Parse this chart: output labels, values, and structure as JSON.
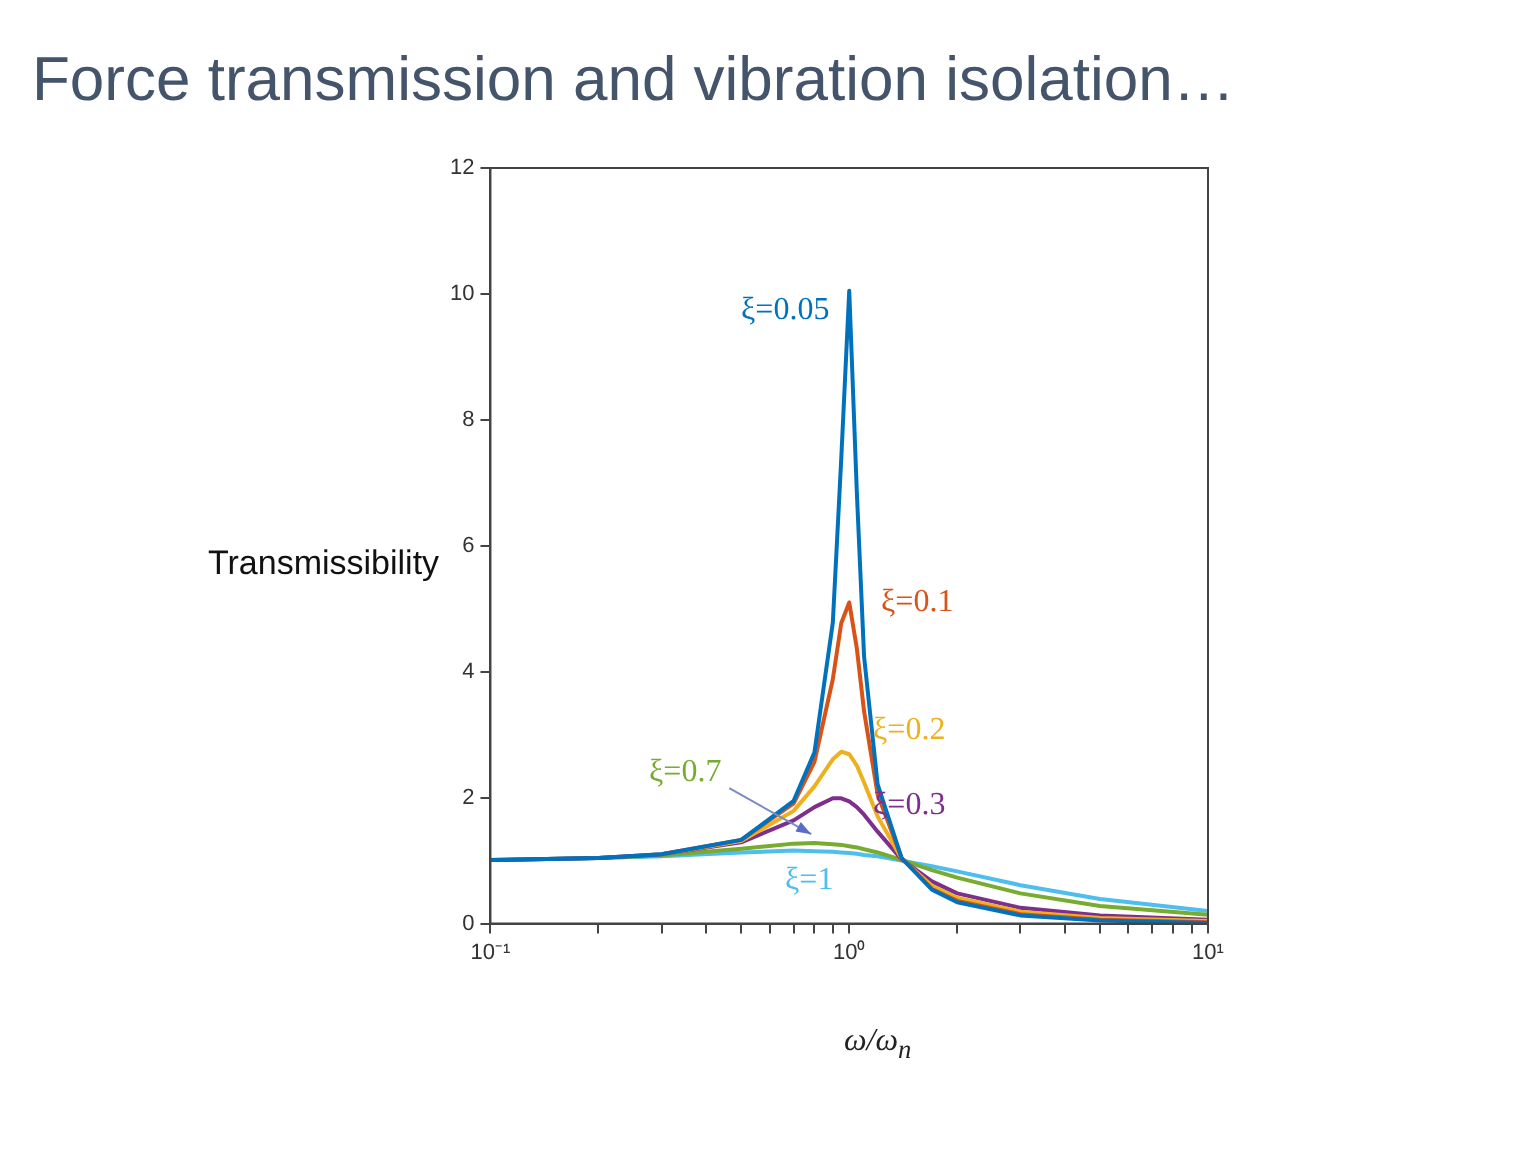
{
  "chart_data": {
    "type": "line",
    "title": "Force transmission and vibration isolation…",
    "xlabel": "ω/ω$_{n}$",
    "ylabel": "Transmissibility",
    "x": [
      0.1,
      0.2,
      0.3,
      0.5,
      0.7,
      0.8,
      0.9,
      0.95,
      1,
      1.05,
      1.1,
      1.2,
      1.4,
      1.7,
      2,
      3,
      5,
      10
    ],
    "series": [
      {
        "name": "ξ=0.05",
        "color": "#0072bd",
        "values": [
          1.01,
          1.04,
          1.1,
          1.33,
          1.95,
          2.72,
          4.78,
          7.38,
          10.05,
          6.85,
          4.24,
          2.21,
          1.04,
          0.54,
          0.34,
          0.13,
          0.05,
          0.01
        ]
      },
      {
        "name": "ξ=0.1",
        "color": "#d95319",
        "values": [
          null,
          null,
          1.1,
          1.33,
          1.91,
          2.57,
          3.88,
          4.77,
          5.1,
          4.37,
          3.37,
          2.05,
          1.04,
          0.55,
          0.36,
          0.15,
          0.06,
          0.02
        ]
      },
      {
        "name": "ξ=0.2",
        "color": "#edb120",
        "values": [
          null,
          null,
          1.1,
          1.31,
          1.79,
          2.18,
          2.61,
          2.73,
          2.69,
          2.51,
          2.24,
          1.7,
          1.03,
          0.6,
          0.41,
          0.19,
          0.09,
          0.04
        ]
      },
      {
        "name": "ξ=0.3",
        "color": "#7e2f8e",
        "values": [
          1.01,
          1.04,
          1.1,
          1.29,
          1.64,
          1.85,
          1.99,
          1.99,
          1.94,
          1.85,
          1.73,
          1.46,
          1.02,
          0.67,
          0.48,
          0.25,
          0.13,
          0.06
        ]
      },
      {
        "name": "ξ=0.7",
        "color": "#77ac30",
        "values": [
          1.01,
          1.04,
          1.08,
          1.19,
          1.27,
          1.28,
          1.26,
          1.25,
          1.23,
          1.21,
          1.18,
          1.13,
          1.01,
          0.85,
          0.73,
          0.48,
          0.28,
          0.14
        ]
      },
      {
        "name": "ξ=1",
        "color": "#4dbeee",
        "values": [
          1.01,
          1.04,
          1.07,
          1.13,
          1.16,
          1.15,
          1.14,
          1.13,
          1.12,
          1.11,
          1.09,
          1.07,
          1.0,
          0.91,
          0.83,
          0.61,
          0.39,
          0.2
        ]
      }
    ],
    "log": "x",
    "xlim": [
      0.1,
      10
    ],
    "xticks": [
      {
        "value": 0.1,
        "label": "10⁻¹"
      },
      {
        "value": 0.2,
        "label": null
      },
      {
        "value": 0.3,
        "label": null
      },
      {
        "value": 0.4,
        "label": null
      },
      {
        "value": 0.5,
        "label": null
      },
      {
        "value": 0.6,
        "label": null
      },
      {
        "value": 0.7,
        "label": null
      },
      {
        "value": 0.8,
        "label": null
      },
      {
        "value": 0.9,
        "label": null
      },
      {
        "value": 1,
        "label": "10⁰"
      },
      {
        "value": 2,
        "label": null
      },
      {
        "value": 3,
        "label": null
      },
      {
        "value": 4,
        "label": null
      },
      {
        "value": 5,
        "label": null
      },
      {
        "value": 6,
        "label": null
      },
      {
        "value": 7,
        "label": null
      },
      {
        "value": 8,
        "label": null
      },
      {
        "value": 9,
        "label": null
      },
      {
        "value": 10,
        "label": "10¹"
      }
    ],
    "ylim": [
      0,
      12
    ],
    "yticks": [
      0,
      2,
      4,
      6,
      8,
      10,
      12
    ],
    "grid": false,
    "legend": false,
    "marker": "none",
    "line_style": "solid"
  }
}
